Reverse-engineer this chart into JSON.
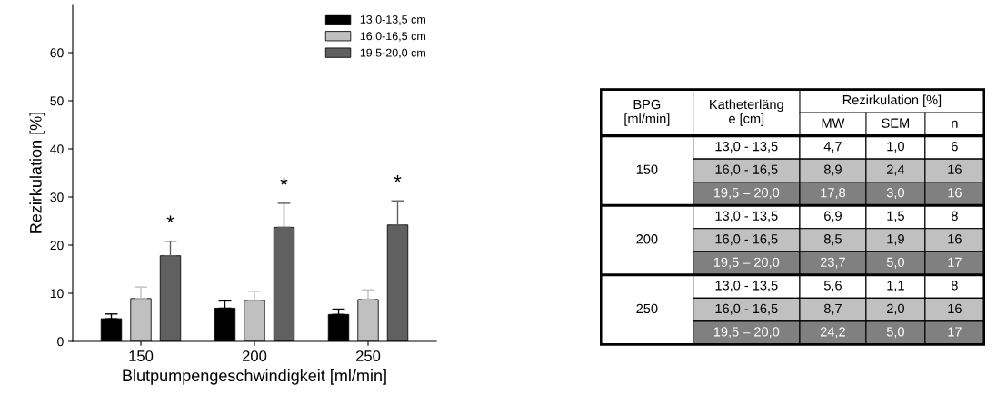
{
  "chart_data": [
    {
      "type": "bar",
      "xlabel": "Blutpumpengeschwindigkeit [ml/min]",
      "ylabel": "Rezirkulation [%]",
      "categories": [
        "150",
        "200",
        "250"
      ],
      "ylim": [
        0,
        70
      ],
      "yticks": [
        0,
        10,
        20,
        30,
        40,
        50,
        60
      ],
      "grid": false,
      "legend": "top right",
      "series": [
        {
          "name": "13,0-13,5 cm",
          "color": "#000000",
          "values": [
            4.7,
            6.9,
            5.6
          ],
          "errors": [
            [
              4.7,
              5.7
            ],
            [
              6.9,
              8.4
            ],
            [
              5.6,
              6.7
            ]
          ]
        },
        {
          "name": "16,0-16,5 cm",
          "color": "#c0c0c0",
          "values": [
            8.9,
            8.5,
            8.7
          ],
          "errors": [
            [
              8.9,
              11.3
            ],
            [
              8.5,
              10.4
            ],
            [
              8.7,
              10.7
            ]
          ]
        },
        {
          "name": "19,5-20,0 cm",
          "color": "#606060",
          "values": [
            17.8,
            23.7,
            24.2
          ],
          "errors": [
            [
              17.8,
              20.8
            ],
            [
              23.7,
              28.7
            ],
            [
              24.2,
              29.2
            ]
          ]
        }
      ],
      "annotations": [
        "*",
        "*",
        "*"
      ]
    },
    {
      "type": "other",
      "title": "Rezirkulation [%]",
      "categories": [
        "BPG\n[ml/min]",
        "Katheterläng\ne [cm]",
        "MW",
        "SEM",
        "n"
      ],
      "y_categories": [
        "150",
        "200",
        "250"
      ],
      "colors": [
        "#ffffff",
        "#c0c0c0",
        "#808080"
      ],
      "cell_labels": [
        [
          "13,0 - 13,5",
          "4,7",
          "1,0",
          "6"
        ],
        [
          "16,0 - 16,5",
          "8,9",
          "2,4",
          "16"
        ],
        [
          "19,5 – 20,0",
          "17,8",
          "3,0",
          "16"
        ],
        [
          "13,0 - 13,5",
          "6,9",
          "1,5",
          "8"
        ],
        [
          "16,0 - 16,5",
          "8,5",
          "1,9",
          "16"
        ],
        [
          "19,5 – 20,0",
          "23,7",
          "5,0",
          "17"
        ],
        [
          "13,0 - 13,5",
          "5,6",
          "1,1",
          "8"
        ],
        [
          "16,0 - 16,5",
          "8,7",
          "2,0",
          "16"
        ],
        [
          "19,5 – 20,0",
          "24,2",
          "5,0",
          "17"
        ]
      ]
    }
  ]
}
